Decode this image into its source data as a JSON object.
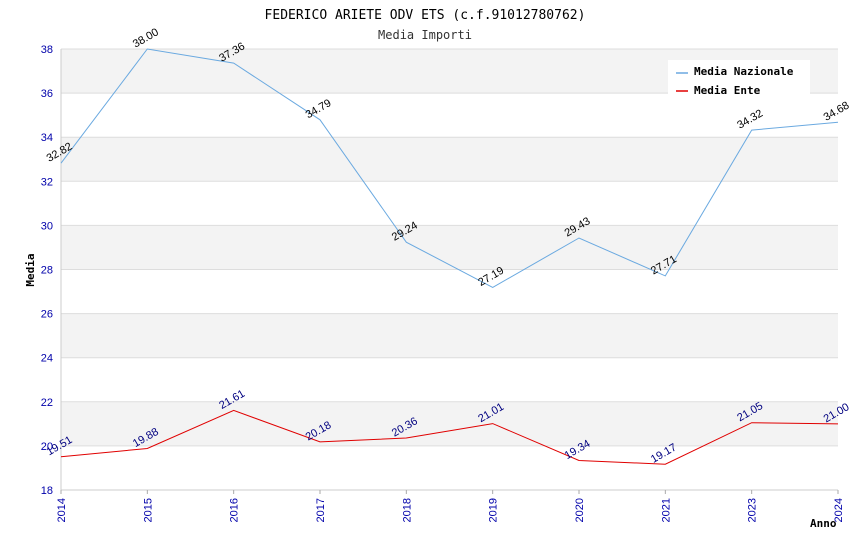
{
  "chart_data": {
    "type": "line",
    "title": "FEDERICO ARIETE ODV ETS (c.f.91012780762)",
    "subtitle": "Media Importi",
    "xlabel": "Anno",
    "ylabel": "Media",
    "ylim": [
      18,
      38
    ],
    "yticks": [
      "18",
      "20",
      "22",
      "24",
      "26",
      "28",
      "30",
      "32",
      "34",
      "36",
      "38"
    ],
    "categories": [
      "2014",
      "2015",
      "2016",
      "2017",
      "2018",
      "2019",
      "2020",
      "2021",
      "2023",
      "2024"
    ],
    "grid": true,
    "legend_position": "top-right",
    "series": [
      {
        "name": "Media Nazionale",
        "color": "#6aa9e0",
        "values": [
          32.82,
          38.0,
          37.36,
          34.79,
          29.24,
          27.19,
          29.43,
          27.71,
          34.32,
          34.68
        ],
        "labels": [
          "32.82",
          "38.00",
          "37.36",
          "34.79",
          "29.24",
          "27.19",
          "29.43",
          "27.71",
          "34.32",
          "34.68"
        ]
      },
      {
        "name": "Media Ente",
        "color": "#e00000",
        "values": [
          19.51,
          19.88,
          21.61,
          20.18,
          20.36,
          21.01,
          19.34,
          19.17,
          21.05,
          21.0
        ],
        "labels": [
          "19.51",
          "19.88",
          "21.61",
          "20.18",
          "20.36",
          "21.01",
          "19.34",
          "19.17",
          "21.05",
          "21.00"
        ]
      }
    ]
  }
}
